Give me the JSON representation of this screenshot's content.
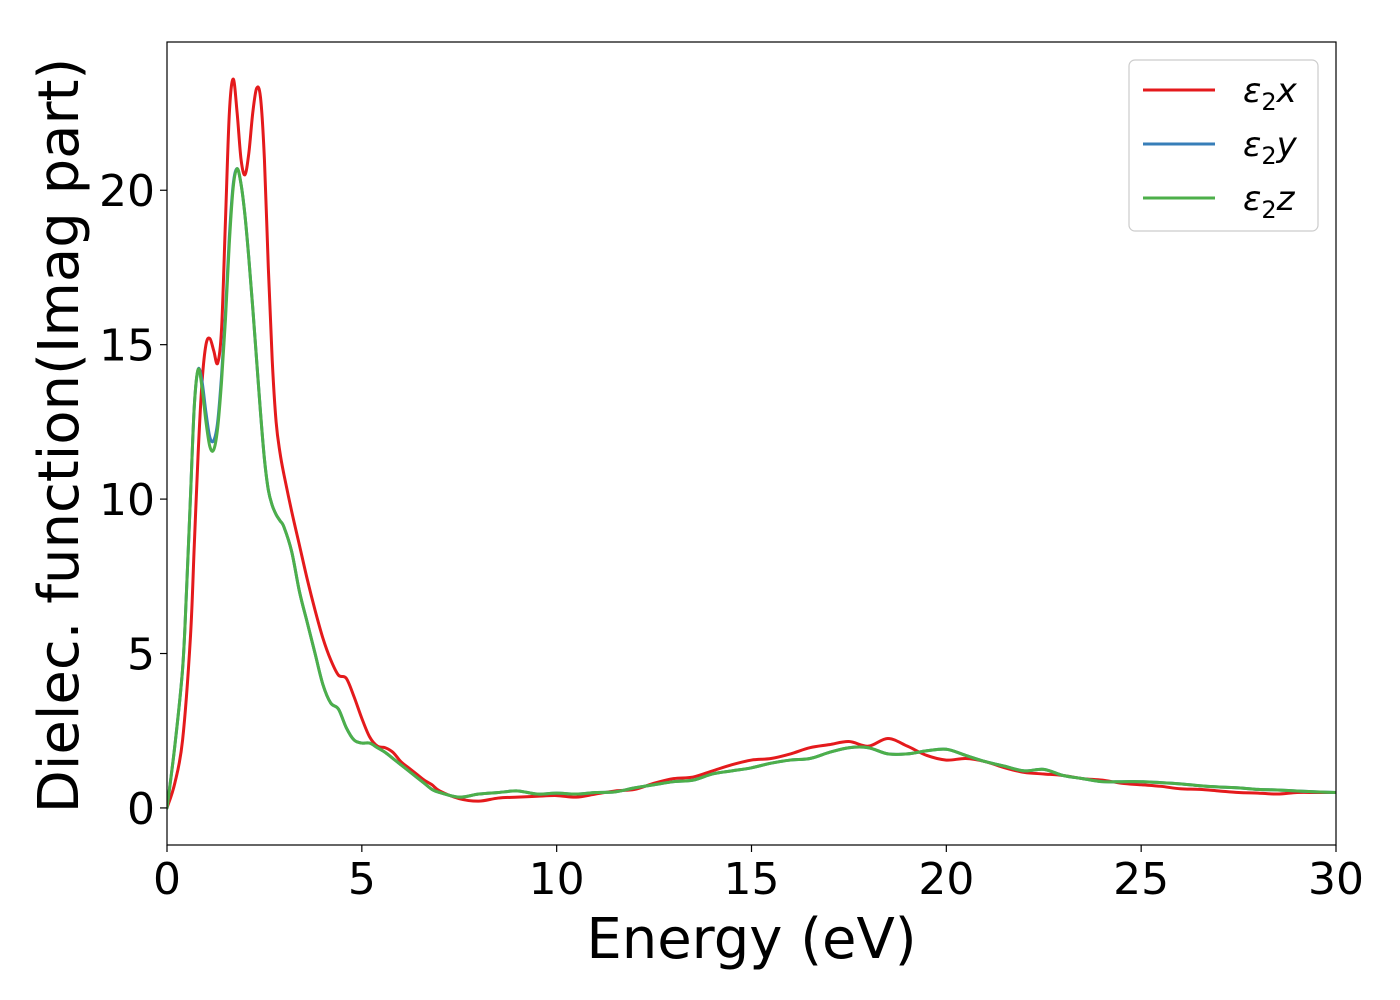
{
  "chart_data": {
    "type": "line",
    "xlabel": "Energy (eV)",
    "ylabel": "Dielec. function(Imag part)",
    "xlim": [
      0,
      30
    ],
    "ylim": [
      -1.2,
      24.8
    ],
    "xticks": [
      0,
      5,
      10,
      15,
      20,
      25,
      30
    ],
    "yticks": [
      0,
      5,
      10,
      15,
      20
    ],
    "grid": false,
    "legend_position": "top-right",
    "series": [
      {
        "name": "ε2x",
        "legend": {
          "base": "ε",
          "sub": "2",
          "suffix": "x"
        },
        "color": "#e41a1c",
        "x": [
          0,
          0.2,
          0.4,
          0.6,
          0.7,
          0.8,
          0.9,
          1.0,
          1.1,
          1.2,
          1.3,
          1.4,
          1.5,
          1.6,
          1.7,
          1.8,
          1.9,
          2.0,
          2.1,
          2.2,
          2.3,
          2.4,
          2.5,
          2.6,
          2.7,
          2.8,
          2.9,
          3.0,
          3.2,
          3.4,
          3.6,
          3.8,
          4.0,
          4.2,
          4.4,
          4.6,
          4.8,
          5.0,
          5.2,
          5.4,
          5.6,
          5.8,
          6.0,
          6.2,
          6.4,
          6.6,
          6.8,
          7.0,
          7.5,
          8.0,
          8.5,
          9.0,
          9.5,
          10.0,
          10.5,
          11.0,
          11.5,
          12.0,
          12.5,
          13.0,
          13.5,
          14.0,
          14.5,
          15.0,
          15.5,
          16.0,
          16.5,
          17.0,
          17.5,
          18.0,
          18.5,
          19.0,
          19.5,
          20.0,
          20.5,
          21.0,
          21.5,
          22.0,
          22.5,
          23.0,
          23.5,
          24.0,
          24.5,
          25.0,
          25.5,
          26.0,
          26.5,
          27.0,
          27.5,
          28.0,
          28.5,
          29.0,
          29.5,
          30.0
        ],
        "y": [
          0,
          0.8,
          2.2,
          5.5,
          8.5,
          11.5,
          13.8,
          15.0,
          15.2,
          14.8,
          14.4,
          15.5,
          19.0,
          22.5,
          23.6,
          22.5,
          21.0,
          20.5,
          21.2,
          22.5,
          23.3,
          23.0,
          21.0,
          17.5,
          14.5,
          12.5,
          11.5,
          10.8,
          9.6,
          8.5,
          7.4,
          6.4,
          5.5,
          4.8,
          4.3,
          4.2,
          3.6,
          2.9,
          2.3,
          2.0,
          1.95,
          1.8,
          1.5,
          1.3,
          1.1,
          0.9,
          0.75,
          0.55,
          0.3,
          0.22,
          0.32,
          0.35,
          0.38,
          0.4,
          0.35,
          0.45,
          0.55,
          0.6,
          0.8,
          0.95,
          1.0,
          1.2,
          1.4,
          1.55,
          1.6,
          1.75,
          1.95,
          2.05,
          2.15,
          2.0,
          2.25,
          2.0,
          1.7,
          1.55,
          1.6,
          1.5,
          1.3,
          1.15,
          1.1,
          1.05,
          0.95,
          0.9,
          0.8,
          0.75,
          0.7,
          0.62,
          0.6,
          0.55,
          0.5,
          0.48,
          0.45,
          0.5,
          0.5,
          0.5
        ]
      },
      {
        "name": "ε2y",
        "legend": {
          "base": "ε",
          "sub": "2",
          "suffix": "y"
        },
        "color": "#377eb8",
        "x": [
          0,
          0.2,
          0.4,
          0.5,
          0.6,
          0.7,
          0.8,
          0.9,
          1.0,
          1.1,
          1.2,
          1.3,
          1.4,
          1.5,
          1.6,
          1.7,
          1.8,
          1.9,
          2.0,
          2.1,
          2.2,
          2.3,
          2.4,
          2.5,
          2.6,
          2.7,
          2.8,
          2.9,
          3.0,
          3.2,
          3.4,
          3.6,
          3.8,
          4.0,
          4.2,
          4.4,
          4.6,
          4.8,
          5.0,
          5.2,
          5.4,
          5.6,
          5.8,
          6.0,
          6.2,
          6.4,
          6.6,
          6.8,
          7.0,
          7.5,
          8.0,
          8.5,
          9.0,
          9.5,
          10.0,
          10.5,
          11.0,
          11.5,
          12.0,
          12.5,
          13.0,
          13.5,
          14.0,
          14.5,
          15.0,
          15.5,
          16.0,
          16.5,
          17.0,
          17.5,
          18.0,
          18.5,
          19.0,
          19.5,
          20.0,
          20.5,
          21.0,
          21.5,
          22.0,
          22.5,
          23.0,
          23.5,
          24.0,
          24.5,
          25.0,
          25.5,
          26.0,
          26.5,
          27.0,
          27.5,
          28.0,
          28.5,
          29.0,
          29.5,
          30.0
        ],
        "y": [
          0,
          2.0,
          4.5,
          7.0,
          10.0,
          13.0,
          14.2,
          13.8,
          12.8,
          12.0,
          11.9,
          12.5,
          14.0,
          16.0,
          18.5,
          20.2,
          20.7,
          20.2,
          19.2,
          17.8,
          16.2,
          14.5,
          12.8,
          11.3,
          10.3,
          9.8,
          9.5,
          9.3,
          9.1,
          8.3,
          7.0,
          6.0,
          5.0,
          4.0,
          3.4,
          3.2,
          2.6,
          2.2,
          2.1,
          2.1,
          1.95,
          1.8,
          1.6,
          1.4,
          1.2,
          1.0,
          0.8,
          0.6,
          0.5,
          0.35,
          0.45,
          0.5,
          0.55,
          0.45,
          0.48,
          0.45,
          0.5,
          0.52,
          0.65,
          0.75,
          0.85,
          0.9,
          1.1,
          1.2,
          1.3,
          1.45,
          1.55,
          1.6,
          1.8,
          1.95,
          1.95,
          1.75,
          1.75,
          1.85,
          1.9,
          1.7,
          1.5,
          1.35,
          1.2,
          1.25,
          1.05,
          0.95,
          0.85,
          0.85,
          0.85,
          0.82,
          0.78,
          0.72,
          0.68,
          0.65,
          0.6,
          0.58,
          0.55,
          0.52,
          0.5
        ]
      },
      {
        "name": "ε2z",
        "legend": {
          "base": "ε",
          "sub": "2",
          "suffix": "z"
        },
        "color": "#4daf4a",
        "x": [
          0,
          0.2,
          0.4,
          0.5,
          0.6,
          0.7,
          0.8,
          0.9,
          1.0,
          1.1,
          1.2,
          1.3,
          1.4,
          1.5,
          1.6,
          1.7,
          1.8,
          1.9,
          2.0,
          2.1,
          2.2,
          2.3,
          2.4,
          2.5,
          2.6,
          2.7,
          2.8,
          2.9,
          3.0,
          3.2,
          3.4,
          3.6,
          3.8,
          4.0,
          4.2,
          4.4,
          4.6,
          4.8,
          5.0,
          5.2,
          5.4,
          5.6,
          5.8,
          6.0,
          6.2,
          6.4,
          6.6,
          6.8,
          7.0,
          7.5,
          8.0,
          8.5,
          9.0,
          9.5,
          10.0,
          10.5,
          11.0,
          11.5,
          12.0,
          12.5,
          13.0,
          13.5,
          14.0,
          14.5,
          15.0,
          15.5,
          16.0,
          16.5,
          17.0,
          17.5,
          18.0,
          18.5,
          19.0,
          19.5,
          20.0,
          20.5,
          21.0,
          21.5,
          22.0,
          22.5,
          23.0,
          23.5,
          24.0,
          24.5,
          25.0,
          25.5,
          26.0,
          26.5,
          27.0,
          27.5,
          28.0,
          28.5,
          29.0,
          29.5,
          30.0
        ],
        "y": [
          0,
          2.0,
          4.5,
          7.0,
          10.0,
          13.0,
          14.2,
          13.6,
          12.5,
          11.7,
          11.6,
          12.3,
          13.8,
          15.8,
          18.3,
          20.1,
          20.7,
          20.2,
          19.2,
          17.8,
          16.2,
          14.5,
          12.8,
          11.3,
          10.3,
          9.8,
          9.5,
          9.3,
          9.1,
          8.3,
          7.0,
          6.0,
          5.0,
          4.0,
          3.4,
          3.2,
          2.6,
          2.2,
          2.1,
          2.1,
          1.95,
          1.8,
          1.6,
          1.4,
          1.2,
          1.0,
          0.8,
          0.6,
          0.5,
          0.35,
          0.45,
          0.5,
          0.55,
          0.45,
          0.48,
          0.45,
          0.5,
          0.52,
          0.65,
          0.75,
          0.85,
          0.9,
          1.1,
          1.2,
          1.3,
          1.45,
          1.55,
          1.6,
          1.8,
          1.95,
          1.95,
          1.75,
          1.75,
          1.85,
          1.9,
          1.7,
          1.5,
          1.35,
          1.2,
          1.25,
          1.05,
          0.95,
          0.85,
          0.85,
          0.85,
          0.82,
          0.78,
          0.72,
          0.68,
          0.65,
          0.6,
          0.58,
          0.55,
          0.52,
          0.5
        ]
      }
    ]
  }
}
